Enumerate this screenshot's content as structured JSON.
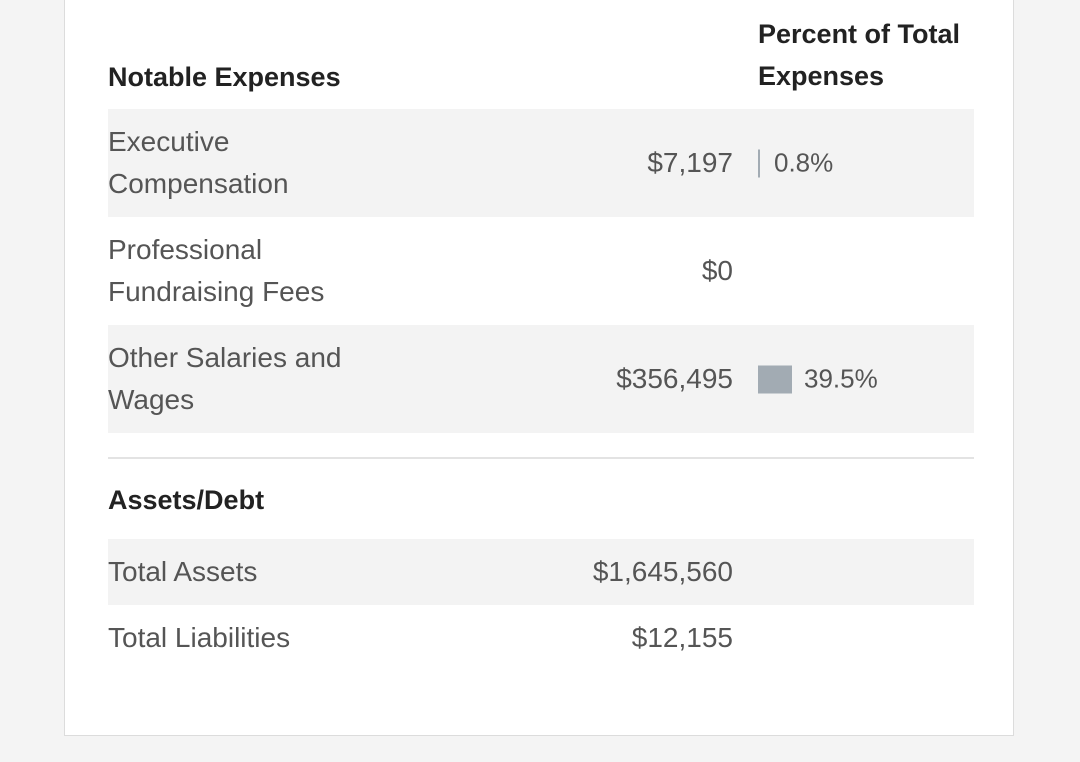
{
  "expenses": {
    "heading": "Notable Expenses",
    "percent_heading": "Percent of Total Expenses",
    "rows": [
      {
        "label": "Executive Compensation",
        "value": "$7,197",
        "percent": "0.8%",
        "percent_value": 0.8
      },
      {
        "label": "Professional Fundraising Fees",
        "value": "$0",
        "percent": "",
        "percent_value": 0
      },
      {
        "label": "Other Salaries and Wages",
        "value": "$356,495",
        "percent": "39.5%",
        "percent_value": 39.5
      }
    ]
  },
  "assets": {
    "heading": "Assets/Debt",
    "rows": [
      {
        "label": "Total Assets",
        "value": "$1,645,560"
      },
      {
        "label": "Total Liabilities",
        "value": "$12,155"
      }
    ]
  },
  "colors": {
    "bar": "#a2abb3",
    "shaded_row": "#f3f3f3"
  }
}
